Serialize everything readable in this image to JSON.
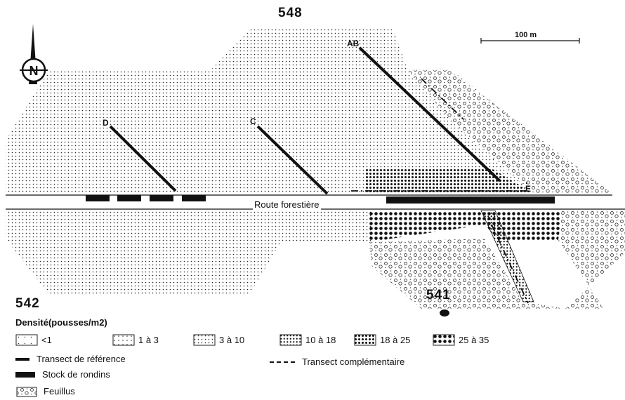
{
  "map": {
    "labels": {
      "zone_548": "548",
      "zone_542": "542",
      "zone_541": "541",
      "road": "Route forestière",
      "scale": "100 m",
      "north": "N"
    },
    "transects": {
      "ab": "AB",
      "c": "C",
      "d": "D",
      "e": "E"
    }
  },
  "legend": {
    "title": "Densité(pousses/m2)",
    "density_classes": [
      {
        "label": "<1",
        "pattern": "pat-lt1"
      },
      {
        "label": "1 à 3",
        "pattern": "pat-1to3"
      },
      {
        "label": "3 à 10",
        "pattern": "pat-3to10"
      },
      {
        "label": "10 à 18",
        "pattern": "pat-10to18"
      },
      {
        "label": "18 à 25",
        "pattern": "pat-18to25"
      },
      {
        "label": "25 à 35",
        "pattern": "pat-25to35"
      }
    ],
    "reference_transect": "Transect de référence",
    "log_stock": "Stock de rondins",
    "complementary_transect": "Transect complémentaire",
    "hardwoods": "Feuillus"
  },
  "colors": {
    "ink": "#111111",
    "background": "#ffffff"
  }
}
